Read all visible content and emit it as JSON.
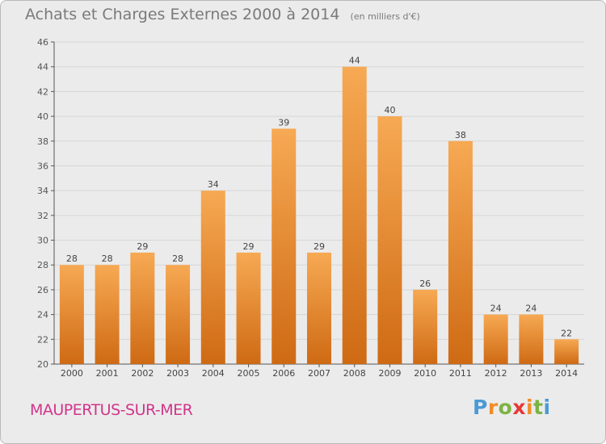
{
  "header": {
    "title": "Achats et Charges Externes 2000 à 2014",
    "subtitle": "(en milliers d'€)"
  },
  "footer": {
    "commune": "MAUPERTUS-SUR-MER",
    "logo": "Proxiti"
  },
  "colors": {
    "bar_light": "#f7a953",
    "bar_dark": "#cf6a14",
    "commune_text": "#d1358a",
    "title_text": "#7a7a7a",
    "background": "#ebebeb"
  },
  "chart_data": {
    "type": "bar",
    "title": "Achats et Charges Externes 2000 à 2014",
    "subtitle": "(en milliers d'€)",
    "xlabel": "",
    "ylabel": "",
    "categories": [
      "2000",
      "2001",
      "2002",
      "2003",
      "2004",
      "2005",
      "2006",
      "2007",
      "2008",
      "2009",
      "2010",
      "2011",
      "2012",
      "2013",
      "2014"
    ],
    "values": [
      28,
      28,
      29,
      28,
      34,
      29,
      39,
      29,
      44,
      40,
      26,
      38,
      24,
      24,
      22
    ],
    "ylim": [
      20,
      46
    ],
    "yticks": [
      20,
      22,
      24,
      26,
      28,
      30,
      32,
      34,
      36,
      38,
      40,
      42,
      44,
      46
    ],
    "grid": true,
    "legend": "none",
    "data_labels": true
  }
}
